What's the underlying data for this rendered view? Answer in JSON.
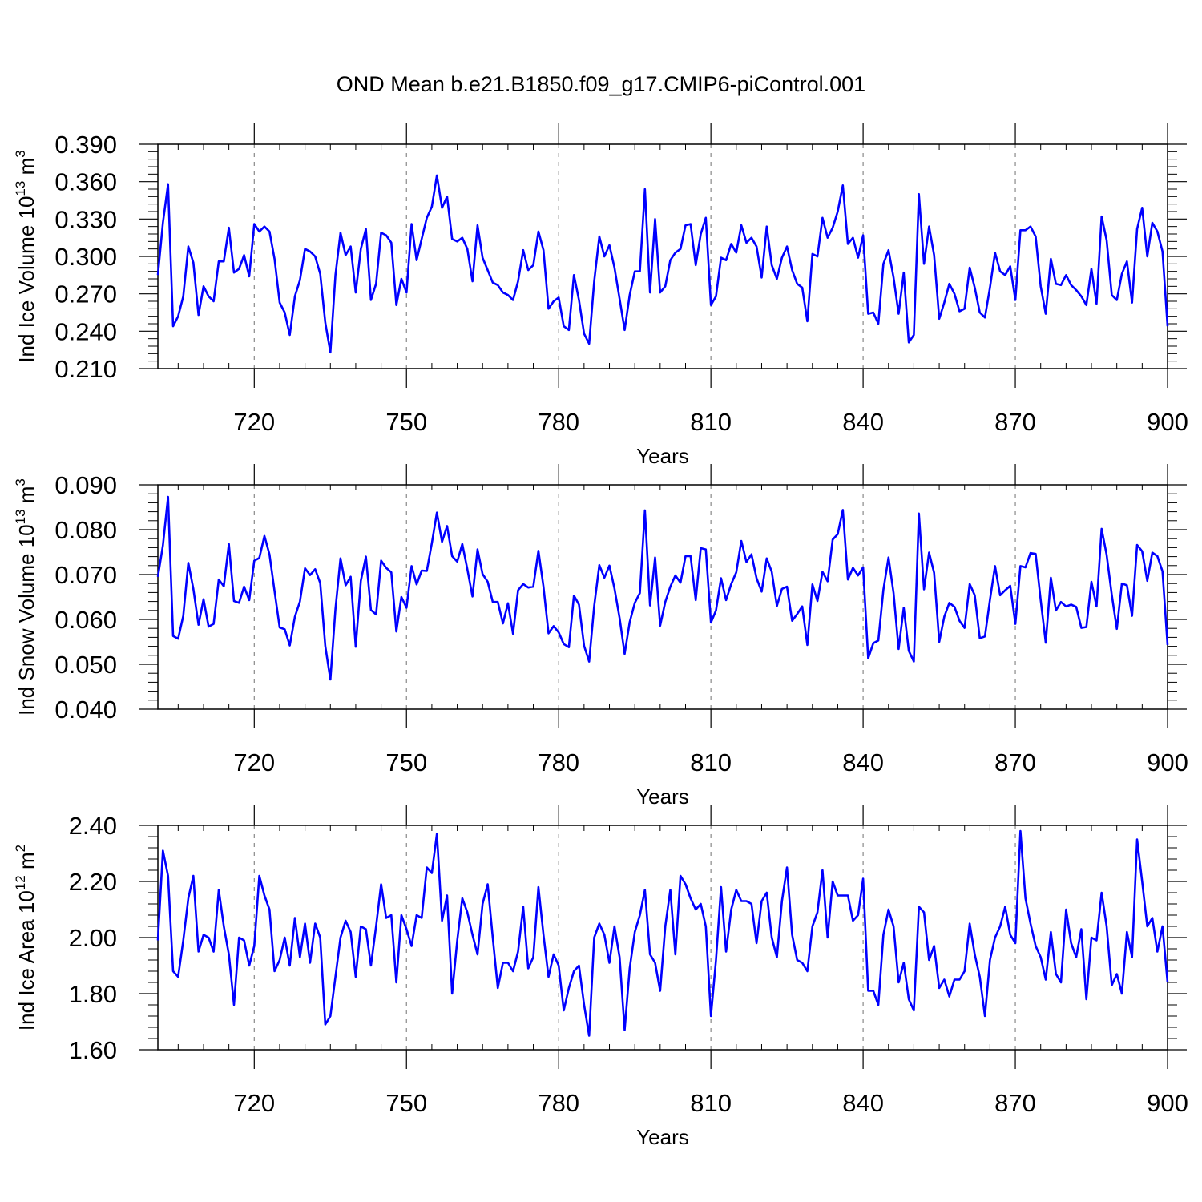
{
  "title": "OND Mean b.e21.B1850.f09_g17.CMIP6-piControl.001",
  "colors": {
    "series": "#0000ff",
    "axis": "#000000",
    "grid": "#888888"
  },
  "chart_data": [
    {
      "type": "line",
      "ylabel_main": "Ind Ice Volume 10",
      "ylabel_exp": "13",
      "ylabel_unit": " m",
      "ylabel_unit_exp": "3",
      "xlabel": "Years",
      "xlim": [
        701,
        900
      ],
      "ylim": [
        0.21,
        0.39
      ],
      "yticks": [
        0.21,
        0.24,
        0.27,
        0.3,
        0.33,
        0.36,
        0.39
      ],
      "ytick_labels": [
        "0.210",
        "0.240",
        "0.270",
        "0.300",
        "0.330",
        "0.360",
        "0.390"
      ],
      "xticks": [
        720,
        750,
        780,
        810,
        840,
        870,
        900
      ],
      "xtick_labels": [
        "720",
        "750",
        "780",
        "810",
        "840",
        "870",
        "900"
      ],
      "x_start": 701,
      "values": [
        0.285,
        0.327,
        0.358,
        0.244,
        0.252,
        0.268,
        0.308,
        0.295,
        0.253,
        0.276,
        0.268,
        0.264,
        0.296,
        0.296,
        0.323,
        0.287,
        0.29,
        0.301,
        0.284,
        0.326,
        0.32,
        0.324,
        0.32,
        0.298,
        0.263,
        0.255,
        0.237,
        0.268,
        0.281,
        0.306,
        0.304,
        0.3,
        0.286,
        0.247,
        0.223,
        0.285,
        0.319,
        0.301,
        0.308,
        0.271,
        0.306,
        0.322,
        0.265,
        0.278,
        0.319,
        0.317,
        0.311,
        0.261,
        0.282,
        0.271,
        0.326,
        0.297,
        0.314,
        0.331,
        0.34,
        0.365,
        0.339,
        0.348,
        0.314,
        0.312,
        0.315,
        0.306,
        0.28,
        0.325,
        0.299,
        0.289,
        0.279,
        0.277,
        0.271,
        0.269,
        0.265,
        0.28,
        0.305,
        0.289,
        0.293,
        0.32,
        0.305,
        0.258,
        0.264,
        0.267,
        0.244,
        0.241,
        0.285,
        0.265,
        0.238,
        0.23,
        0.28,
        0.316,
        0.3,
        0.309,
        0.291,
        0.266,
        0.241,
        0.269,
        0.288,
        0.288,
        0.354,
        0.271,
        0.33,
        0.271,
        0.276,
        0.297,
        0.303,
        0.306,
        0.325,
        0.326,
        0.293,
        0.318,
        0.331,
        0.261,
        0.268,
        0.299,
        0.297,
        0.31,
        0.303,
        0.325,
        0.311,
        0.315,
        0.308,
        0.283,
        0.324,
        0.293,
        0.282,
        0.299,
        0.308,
        0.289,
        0.278,
        0.275,
        0.248,
        0.302,
        0.3,
        0.331,
        0.315,
        0.323,
        0.336,
        0.357,
        0.31,
        0.315,
        0.299,
        0.317,
        0.254,
        0.255,
        0.246,
        0.294,
        0.305,
        0.283,
        0.254,
        0.287,
        0.231,
        0.237,
        0.35,
        0.294,
        0.324,
        0.301,
        0.25,
        0.263,
        0.278,
        0.27,
        0.256,
        0.258,
        0.291,
        0.275,
        0.255,
        0.251,
        0.275,
        0.303,
        0.288,
        0.285,
        0.292,
        0.265,
        0.321,
        0.321,
        0.324,
        0.316,
        0.276,
        0.254,
        0.298,
        0.278,
        0.277,
        0.285,
        0.277,
        0.273,
        0.268,
        0.261,
        0.29,
        0.262,
        0.332,
        0.313,
        0.269,
        0.265,
        0.286,
        0.296,
        0.263,
        0.322,
        0.339,
        0.3,
        0.327,
        0.32,
        0.304,
        0.244
      ]
    },
    {
      "type": "line",
      "ylabel_main": "Ind Snow Volume 10",
      "ylabel_exp": "13",
      "ylabel_unit": " m",
      "ylabel_unit_exp": "3",
      "xlabel": "Years",
      "xlim": [
        701,
        900
      ],
      "ylim": [
        0.04,
        0.09
      ],
      "yticks": [
        0.04,
        0.05,
        0.06,
        0.07,
        0.08,
        0.09
      ],
      "ytick_labels": [
        "0.040",
        "0.050",
        "0.060",
        "0.070",
        "0.080",
        "0.090"
      ],
      "xticks": [
        720,
        750,
        780,
        810,
        840,
        870,
        900
      ],
      "xtick_labels": [
        "720",
        "750",
        "780",
        "810",
        "840",
        "870",
        "900"
      ],
      "x_start": 701,
      "values": [
        0.0695,
        0.0765,
        0.0873,
        0.0563,
        0.0557,
        0.0608,
        0.0726,
        0.0668,
        0.0588,
        0.0645,
        0.0584,
        0.059,
        0.0689,
        0.0674,
        0.0768,
        0.0641,
        0.0637,
        0.0673,
        0.0643,
        0.0731,
        0.0737,
        0.0786,
        0.0745,
        0.0663,
        0.0582,
        0.0578,
        0.0542,
        0.0606,
        0.064,
        0.0714,
        0.0699,
        0.0712,
        0.0681,
        0.0541,
        0.0466,
        0.0623,
        0.0736,
        0.0676,
        0.0695,
        0.0539,
        0.0686,
        0.074,
        0.0621,
        0.0611,
        0.0731,
        0.0715,
        0.0705,
        0.0573,
        0.065,
        0.0626,
        0.0719,
        0.0678,
        0.0709,
        0.0708,
        0.077,
        0.0838,
        0.0773,
        0.0808,
        0.0741,
        0.0729,
        0.0768,
        0.0712,
        0.0651,
        0.0756,
        0.0701,
        0.0684,
        0.0639,
        0.0639,
        0.0591,
        0.0636,
        0.0568,
        0.0665,
        0.0679,
        0.0671,
        0.0673,
        0.0753,
        0.0673,
        0.0569,
        0.0585,
        0.0571,
        0.0545,
        0.0538,
        0.0653,
        0.0633,
        0.0541,
        0.0506,
        0.063,
        0.0721,
        0.0693,
        0.072,
        0.0669,
        0.0603,
        0.0523,
        0.0594,
        0.0637,
        0.0659,
        0.0843,
        0.0631,
        0.0738,
        0.0586,
        0.0639,
        0.0673,
        0.0698,
        0.0682,
        0.0741,
        0.0741,
        0.0643,
        0.0759,
        0.0756,
        0.0593,
        0.062,
        0.0692,
        0.0643,
        0.0679,
        0.0705,
        0.0775,
        0.0728,
        0.0745,
        0.0692,
        0.0662,
        0.0736,
        0.0706,
        0.063,
        0.0668,
        0.0673,
        0.0597,
        0.0612,
        0.0629,
        0.0543,
        0.0678,
        0.0641,
        0.0706,
        0.0685,
        0.0778,
        0.079,
        0.0844,
        0.0689,
        0.0715,
        0.0698,
        0.0716,
        0.0513,
        0.0547,
        0.0553,
        0.0666,
        0.0738,
        0.0659,
        0.0534,
        0.0626,
        0.053,
        0.0506,
        0.0836,
        0.0667,
        0.0749,
        0.0704,
        0.055,
        0.0606,
        0.0637,
        0.0628,
        0.0597,
        0.0581,
        0.0679,
        0.0654,
        0.0558,
        0.0562,
        0.0644,
        0.0719,
        0.0654,
        0.0665,
        0.0675,
        0.059,
        0.0719,
        0.0716,
        0.0748,
        0.0746,
        0.0643,
        0.0548,
        0.0693,
        0.062,
        0.0639,
        0.0629,
        0.0633,
        0.0628,
        0.0581,
        0.0583,
        0.0684,
        0.0629,
        0.0802,
        0.0744,
        0.0655,
        0.0579,
        0.068,
        0.0676,
        0.0608,
        0.0766,
        0.0752,
        0.0686,
        0.0749,
        0.0741,
        0.0707,
        0.0543
      ]
    },
    {
      "type": "line",
      "ylabel_main": "Ind Ice Area 10",
      "ylabel_exp": "12",
      "ylabel_unit": " m",
      "ylabel_unit_exp": "2",
      "xlabel": "Years",
      "xlim": [
        701,
        900
      ],
      "ylim": [
        1.6,
        2.4
      ],
      "yticks": [
        1.6,
        1.8,
        2.0,
        2.2,
        2.4
      ],
      "ytick_labels": [
        "1.60",
        "1.80",
        "2.00",
        "2.20",
        "2.40"
      ],
      "xticks": [
        720,
        750,
        780,
        810,
        840,
        870,
        900
      ],
      "xtick_labels": [
        "720",
        "750",
        "780",
        "810",
        "840",
        "870",
        "900"
      ],
      "x_start": 701,
      "values": [
        1.99,
        2.31,
        2.22,
        1.88,
        1.86,
        1.99,
        2.14,
        2.22,
        1.95,
        2.01,
        2.0,
        1.95,
        2.17,
        2.04,
        1.94,
        1.76,
        2.0,
        1.99,
        1.9,
        1.97,
        2.22,
        2.15,
        2.1,
        1.88,
        1.92,
        2.0,
        1.9,
        2.07,
        1.93,
        2.05,
        1.91,
        2.05,
        2.0,
        1.69,
        1.72,
        1.86,
        2.0,
        2.06,
        2.02,
        1.86,
        2.04,
        2.03,
        1.9,
        2.04,
        2.19,
        2.07,
        2.08,
        1.84,
        2.08,
        2.03,
        1.97,
        2.08,
        2.07,
        2.25,
        2.23,
        2.37,
        2.06,
        2.15,
        1.8,
        1.99,
        2.14,
        2.09,
        2.01,
        1.94,
        2.12,
        2.19,
        2.0,
        1.82,
        1.91,
        1.91,
        1.88,
        1.95,
        2.11,
        1.89,
        1.93,
        2.18,
        2.01,
        1.86,
        1.94,
        1.9,
        1.74,
        1.82,
        1.88,
        1.9,
        1.76,
        1.65,
        2.0,
        2.05,
        2.01,
        1.91,
        2.04,
        1.93,
        1.67,
        1.89,
        2.02,
        2.08,
        2.17,
        1.94,
        1.91,
        1.81,
        2.04,
        2.17,
        1.94,
        2.22,
        2.19,
        2.14,
        2.1,
        2.12,
        2.04,
        1.72,
        1.92,
        2.18,
        1.95,
        2.1,
        2.17,
        2.13,
        2.13,
        2.12,
        1.98,
        2.13,
        2.16,
        2.0,
        1.93,
        2.13,
        2.25,
        2.01,
        1.92,
        1.91,
        1.88,
        2.04,
        2.09,
        2.24,
        2.0,
        2.2,
        2.15,
        2.15,
        2.15,
        2.06,
        2.08,
        2.21,
        1.81,
        1.81,
        1.76,
        2.01,
        2.1,
        2.04,
        1.84,
        1.91,
        1.78,
        1.74,
        2.11,
        2.09,
        1.92,
        1.97,
        1.82,
        1.85,
        1.79,
        1.85,
        1.85,
        1.88,
        2.05,
        1.94,
        1.86,
        1.72,
        1.92,
        2.0,
        2.04,
        2.11,
        2.01,
        1.98,
        2.38,
        2.14,
        2.05,
        1.97,
        1.93,
        1.85,
        2.02,
        1.87,
        1.84,
        2.1,
        1.98,
        1.93,
        2.03,
        1.78,
        2.0,
        1.99,
        2.16,
        2.04,
        1.83,
        1.87,
        1.8,
        2.02,
        1.93,
        2.35,
        2.2,
        2.04,
        2.07,
        1.95,
        2.04,
        1.84
      ]
    }
  ]
}
